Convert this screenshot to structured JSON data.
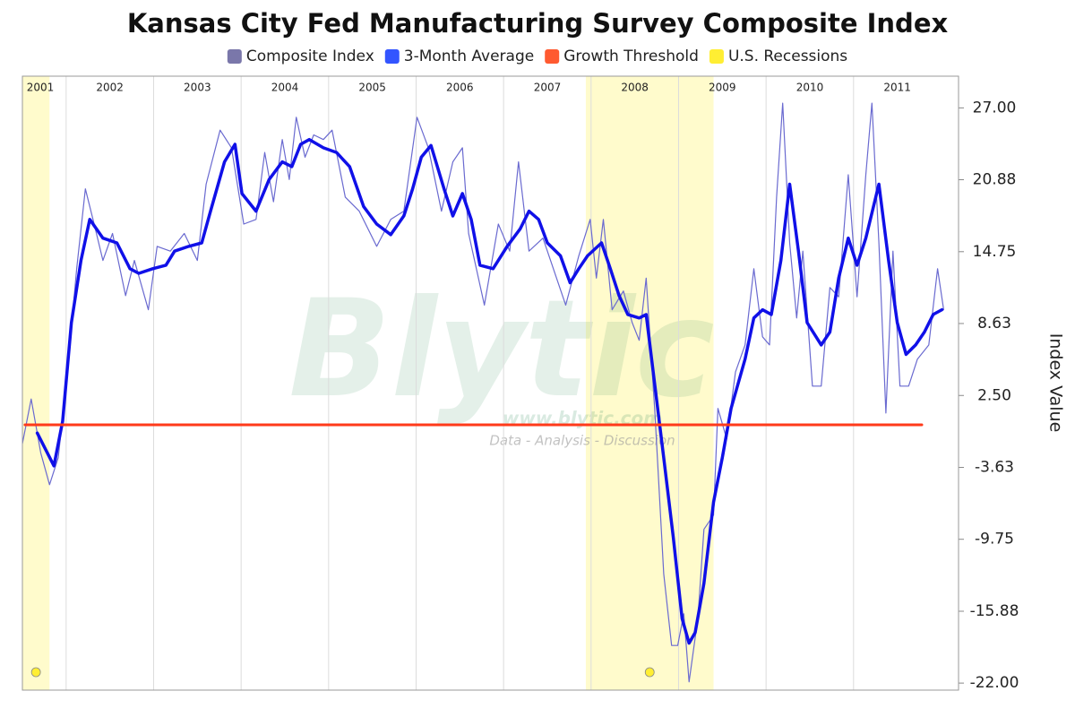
{
  "chart_data": {
    "type": "line",
    "title": "Kansas City Fed Manufacturing Survey Composite Index",
    "y_axis_label": "Index Value",
    "watermark": "Blytic",
    "watermark_url": "www.blytic.com",
    "watermark_tagline": "Data - Analysis - Discussion",
    "xlim": [
      2001.5,
      2012.2
    ],
    "xticks": [
      2001,
      2002,
      2003,
      2004,
      2005,
      2006,
      2007,
      2008,
      2009,
      2010,
      2011
    ],
    "ylim": [
      -22.6,
      29.7
    ],
    "yticks": [
      {
        "value": 27,
        "label": "27.00"
      },
      {
        "value": 20.88,
        "label": "20.88"
      },
      {
        "value": 14.75,
        "label": "14.75"
      },
      {
        "value": 8.63,
        "label": "8.63"
      },
      {
        "value": 2.5,
        "label": "2.50"
      },
      {
        "value": -3.63,
        "label": "-3.63"
      },
      {
        "value": -9.75,
        "label": "-9.75"
      },
      {
        "value": -15.88,
        "label": "-15.88"
      },
      {
        "value": -22,
        "label": "-22.00"
      }
    ],
    "grid": true,
    "legend": "top",
    "recessions": {
      "name": "U.S. Recessions",
      "color": "#fffbcc",
      "legend_color": "#ffee33",
      "ranges": [
        [
          2001.5,
          2001.81
        ],
        [
          2007.94,
          2009.4
        ]
      ]
    },
    "series": [
      {
        "name": "Composite Index",
        "color": "#6a6ad0",
        "legend_color": "#7a77aa",
        "width": 1.2,
        "x": [
          2001.5,
          2001.6,
          2001.71,
          2001.81,
          2001.91,
          2002.01,
          2002.12,
          2002.22,
          2002.32,
          2002.42,
          2002.53,
          2002.68,
          2002.78,
          2002.94,
          2003.04,
          2003.19,
          2003.35,
          2003.5,
          2003.6,
          2003.76,
          2003.89,
          2004.03,
          2004.17,
          2004.27,
          2004.37,
          2004.47,
          2004.55,
          2004.63,
          2004.73,
          2004.83,
          2004.94,
          2005.04,
          2005.19,
          2005.35,
          2005.55,
          2005.71,
          2005.86,
          2006.01,
          2006.14,
          2006.29,
          2006.42,
          2006.53,
          2006.6,
          2006.78,
          2006.94,
          2007.07,
          2007.17,
          2007.29,
          2007.45,
          2007.71,
          2007.86,
          2007.99,
          2008.06,
          2008.14,
          2008.24,
          2008.37,
          2008.47,
          2008.55,
          2008.63,
          2008.73,
          2008.83,
          2008.92,
          2008.99,
          2009.06,
          2009.12,
          2009.22,
          2009.29,
          2009.4,
          2009.45,
          2009.55,
          2009.65,
          2009.76,
          2009.86,
          2009.96,
          2010.04,
          2010.12,
          2010.19,
          2010.27,
          2010.35,
          2010.42,
          2010.53,
          2010.63,
          2010.73,
          2010.83,
          2010.94,
          2011.04,
          2011.14,
          2011.21,
          2011.29,
          2011.37,
          2011.45,
          2011.53,
          2011.63,
          2011.73,
          2011.86,
          2011.96,
          2012.03
        ],
        "values": [
          -1.6,
          2.2,
          -2.4,
          -5.1,
          -2.8,
          4.1,
          13.3,
          20.1,
          17.1,
          14.0,
          16.3,
          11.0,
          14.0,
          9.8,
          15.2,
          14.8,
          16.3,
          14.0,
          20.5,
          25.1,
          23.6,
          17.1,
          17.5,
          23.2,
          19.0,
          24.3,
          20.9,
          26.2,
          22.8,
          24.7,
          24.3,
          25.1,
          19.4,
          18.2,
          15.2,
          17.5,
          18.2,
          26.2,
          23.6,
          18.2,
          22.4,
          23.6,
          16.3,
          10.2,
          17.1,
          14.8,
          22.4,
          14.8,
          15.9,
          10.2,
          14.4,
          17.5,
          12.5,
          17.5,
          9.8,
          11.4,
          8.7,
          7.2,
          12.5,
          1.0,
          -12.7,
          -18.8,
          -18.8,
          -16.1,
          -21.9,
          -16.5,
          -8.9,
          -7.7,
          1.4,
          -1.2,
          4.5,
          6.8,
          13.3,
          7.5,
          6.8,
          19.4,
          27.4,
          15.5,
          9.1,
          14.8,
          3.3,
          3.3,
          11.7,
          10.9,
          21.3,
          10.9,
          21.3,
          27.4,
          15.5,
          1.0,
          14.8,
          3.3,
          3.3,
          5.6,
          6.8,
          13.3,
          9.8
        ]
      },
      {
        "name": "3-Month Average",
        "color": "#1010e8",
        "legend_color": "#3355ff",
        "width": 3.5,
        "x": [
          2001.67,
          2001.86,
          2001.96,
          2002.06,
          2002.17,
          2002.27,
          2002.42,
          2002.58,
          2002.73,
          2002.83,
          2002.99,
          2003.14,
          2003.24,
          2003.4,
          2003.55,
          2003.65,
          2003.81,
          2003.93,
          2004.01,
          2004.17,
          2004.32,
          2004.47,
          2004.58,
          2004.68,
          2004.78,
          2004.94,
          2005.09,
          2005.24,
          2005.4,
          2005.55,
          2005.71,
          2005.86,
          2005.96,
          2006.06,
          2006.17,
          2006.32,
          2006.42,
          2006.53,
          2006.63,
          2006.73,
          2006.88,
          2007.04,
          2007.19,
          2007.29,
          2007.4,
          2007.5,
          2007.65,
          2007.76,
          2007.86,
          2007.96,
          2008.12,
          2008.22,
          2008.32,
          2008.42,
          2008.55,
          2008.63,
          2008.73,
          2008.83,
          2008.94,
          2009.04,
          2009.12,
          2009.19,
          2009.29,
          2009.4,
          2009.5,
          2009.6,
          2009.76,
          2009.86,
          2009.96,
          2010.06,
          2010.17,
          2010.27,
          2010.37,
          2010.47,
          2010.63,
          2010.73,
          2010.83,
          2010.94,
          2011.04,
          2011.14,
          2011.29,
          2011.4,
          2011.5,
          2011.6,
          2011.71,
          2011.81,
          2011.91,
          2012.01
        ],
        "values": [
          -0.7,
          -3.5,
          0.3,
          8.7,
          14.0,
          17.5,
          15.9,
          15.5,
          13.3,
          12.9,
          13.3,
          13.6,
          14.8,
          15.2,
          15.5,
          18.2,
          22.4,
          23.9,
          19.7,
          18.2,
          20.9,
          22.4,
          22.0,
          23.9,
          24.3,
          23.6,
          23.2,
          22.0,
          18.6,
          17.1,
          16.2,
          17.8,
          20.1,
          22.8,
          23.8,
          20.1,
          17.8,
          19.7,
          17.5,
          13.6,
          13.3,
          15.2,
          16.7,
          18.2,
          17.5,
          15.5,
          14.4,
          12.1,
          13.3,
          14.4,
          15.5,
          13.3,
          11.0,
          9.4,
          9.1,
          9.4,
          3.3,
          -2.8,
          -9.6,
          -16.5,
          -18.6,
          -17.7,
          -13.5,
          -6.6,
          -2.8,
          1.4,
          5.6,
          9.1,
          9.8,
          9.4,
          14.0,
          20.5,
          14.8,
          8.7,
          6.8,
          7.9,
          12.5,
          15.9,
          13.6,
          15.9,
          20.5,
          14.0,
          8.7,
          6.0,
          6.8,
          7.9,
          9.4,
          9.8
        ]
      },
      {
        "name": "Growth Threshold",
        "color": "#ff3a1a",
        "legend_color": "#ff5a30",
        "width": 3,
        "x": [
          2001.53,
          2011.78
        ],
        "values": [
          0,
          0
        ]
      }
    ]
  }
}
